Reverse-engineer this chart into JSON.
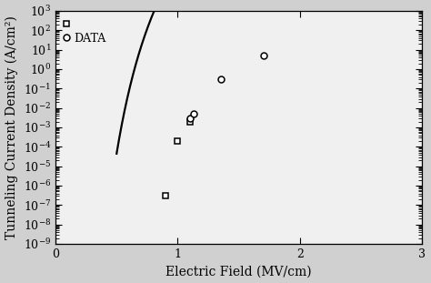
{
  "title": "",
  "xlabel": "Electric Field (MV/cm)",
  "ylabel": "Tunneling Current Density (A/cm²)",
  "xlim": [
    0,
    3
  ],
  "ylim_log": [
    -9,
    3
  ],
  "xticklabels": [
    "0",
    "1",
    "2",
    "3"
  ],
  "xticks": [
    0,
    1,
    2,
    3
  ],
  "curve_color": "#000000",
  "curve_linewidth": 1.6,
  "square_data_x": [
    0.9,
    1.0,
    1.1
  ],
  "square_data_y": [
    3e-07,
    0.0002,
    0.002
  ],
  "circle_data_x": [
    1.1,
    1.13,
    1.35,
    1.7
  ],
  "circle_data_y": [
    0.003,
    0.005,
    0.3,
    5.0
  ],
  "legend_square_label": "DATA",
  "marker_size": 5,
  "background_color": "#f0f0f0",
  "axes_color": "#000000",
  "font_family": "DejaVu Serif",
  "label_fontsize": 10,
  "tick_fontsize": 9,
  "legend_fontsize": 9,
  "A_coeff": 400000000000000.0,
  "B_coeff": 21.3
}
